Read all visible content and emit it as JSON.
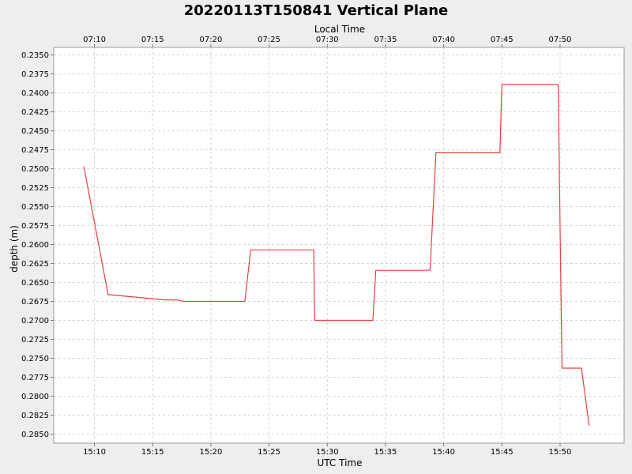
{
  "chart_data": {
    "type": "line",
    "title": "20220113T150841 Vertical Plane",
    "xlabel": "UTC Time",
    "x2label": "Local Time",
    "ylabel": "depth (m)",
    "y_inverted": true,
    "ylim": [
      0.234,
      0.2862
    ],
    "xlim": [
      "15:06.5",
      "15:55.5"
    ],
    "grid": true,
    "x_ticks": [
      "15:10",
      "15:15",
      "15:20",
      "15:25",
      "15:30",
      "15:35",
      "15:40",
      "15:45",
      "15:50"
    ],
    "x2_ticks": [
      "07:10",
      "07:15",
      "07:20",
      "07:25",
      "07:30",
      "07:35",
      "07:40",
      "07:45",
      "07:50"
    ],
    "y_ticks": [
      "0.2350",
      "0.2375",
      "0.2400",
      "0.2425",
      "0.2450",
      "0.2475",
      "0.2500",
      "0.2525",
      "0.2550",
      "0.2575",
      "0.2600",
      "0.2625",
      "0.2650",
      "0.2675",
      "0.2700",
      "0.2725",
      "0.2750",
      "0.2775",
      "0.2800",
      "0.2825",
      "0.2850"
    ],
    "series": [
      {
        "color": "#e8403f",
        "x": [
          "15:09:05",
          "15:11:10",
          "15:16:05",
          "15:17:05",
          "15:17:40",
          "15:22:55",
          "15:23:25",
          "15:28:50",
          "15:28:55",
          "15:33:55",
          "15:34:10",
          "15:38:50",
          "15:39:20",
          "15:44:50",
          "15:45:00",
          "15:49:50",
          "15:50:10",
          "15:51:50",
          "15:52:30"
        ],
        "y": [
          0.2497,
          0.2666,
          0.2673,
          0.2673,
          0.2675,
          0.2675,
          0.2607,
          0.2607,
          0.27,
          0.27,
          0.2634,
          0.2634,
          0.2479,
          0.2479,
          0.2389,
          0.2389,
          0.2763,
          0.2763,
          0.2839
        ]
      }
    ]
  }
}
